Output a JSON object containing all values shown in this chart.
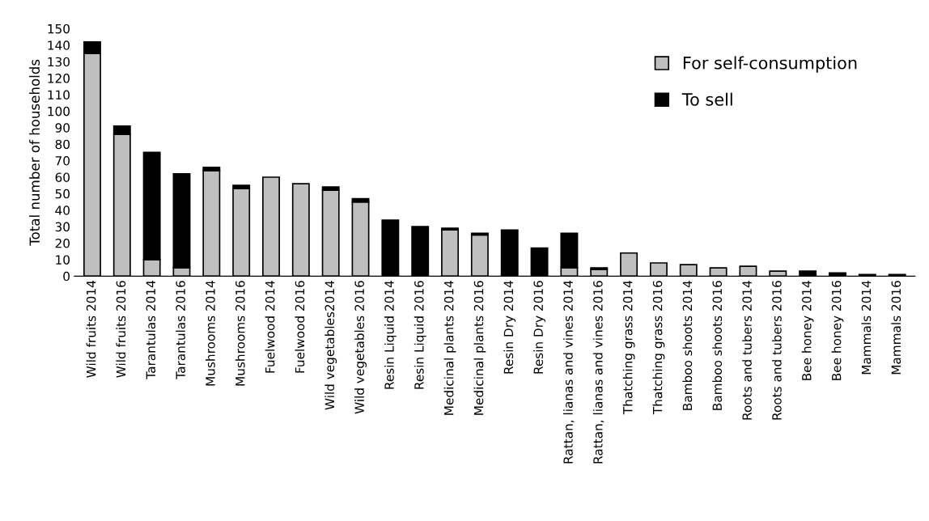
{
  "chart_data": {
    "type": "bar",
    "stacked": true,
    "ylabel": "Total number of households",
    "categories": [
      "Wild fruits 2014",
      "Wild fruits 2016",
      "Tarantulas 2014",
      "Tarantulas 2016",
      "Mushrooms 2014",
      "Mushrooms 2016",
      "Fuelwood 2014",
      "Fuelwood 2016",
      "Wild vegetables2014",
      "Wild vegetables 2016",
      "Resin Liquid 2014",
      "Resin Liquid 2016",
      "Medicinal plants 2014",
      "Medicinal plants 2016",
      "Resin Dry 2014",
      "Resin Dry 2016",
      "Rattan, lianas and vines 2014",
      "Rattan, lianas and vines 2016",
      "Thatching grass 2014",
      "Thatching grass 2016",
      "Bamboo shoots 2014",
      "Bamboo shoots 2016",
      "Roots and tubers 2014",
      "Roots and tubers 2016",
      "Bee honey 2014",
      "Bee honey 2016",
      "Mammals 2014",
      "Mammals 2016"
    ],
    "series": [
      {
        "name": "For self-consumption",
        "color": "#bfbfbf",
        "values": [
          135,
          86,
          10,
          5,
          64,
          53,
          60,
          56,
          52,
          45,
          0,
          0,
          28,
          25,
          0,
          0,
          5,
          4,
          14,
          8,
          7,
          5,
          6,
          3,
          null,
          null,
          0,
          0
        ]
      },
      {
        "name": "To sell",
        "color": "#000000",
        "values": [
          7,
          5,
          65,
          57,
          2,
          2,
          0,
          0,
          2,
          2,
          34,
          30,
          1,
          1,
          28,
          17,
          21,
          1,
          0,
          0,
          0,
          0,
          0,
          0,
          3,
          2,
          1,
          1
        ]
      }
    ],
    "ylim": [
      0,
      150
    ],
    "yticks": [
      0,
      10,
      20,
      30,
      40,
      50,
      60,
      70,
      80,
      90,
      100,
      110,
      120,
      130,
      140,
      150
    ],
    "grid": false,
    "legend": "top right"
  }
}
